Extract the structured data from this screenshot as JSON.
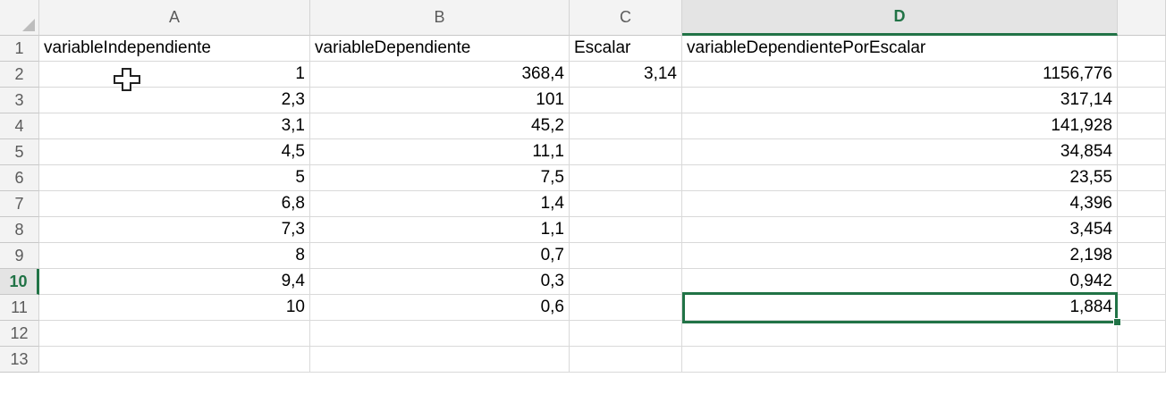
{
  "columns": [
    {
      "letter": "A"
    },
    {
      "letter": "B"
    },
    {
      "letter": "C"
    },
    {
      "letter": "D"
    }
  ],
  "rows": [
    "1",
    "2",
    "3",
    "4",
    "5",
    "6",
    "7",
    "8",
    "9",
    "10",
    "11",
    "12",
    "13"
  ],
  "active_cell": {
    "column": "D",
    "row": "10"
  },
  "cells": [
    [
      "variableIndependiente",
      "variableDependiente",
      "Escalar",
      "variableDependientePorEscalar"
    ],
    [
      "1",
      "368,4",
      "3,14",
      "1156,776"
    ],
    [
      "2,3",
      "101",
      "",
      "317,14"
    ],
    [
      "3,1",
      "45,2",
      "",
      "141,928"
    ],
    [
      "4,5",
      "11,1",
      "",
      "34,854"
    ],
    [
      "5",
      "7,5",
      "",
      "23,55"
    ],
    [
      "6,8",
      "1,4",
      "",
      "4,396"
    ],
    [
      "7,3",
      "1,1",
      "",
      "3,454"
    ],
    [
      "8",
      "0,7",
      "",
      "2,198"
    ],
    [
      "9,4",
      "0,3",
      "",
      "0,942"
    ],
    [
      "10",
      "0,6",
      "",
      "1,884"
    ],
    [
      "",
      "",
      "",
      ""
    ],
    [
      "",
      "",
      "",
      ""
    ]
  ],
  "colors": {
    "accent": "#217346",
    "header_bg": "#f3f3f3",
    "header_active_bg": "#e4e4e4",
    "grid": "#d9d9d9"
  },
  "cursor": "plus-cross-cursor-icon"
}
